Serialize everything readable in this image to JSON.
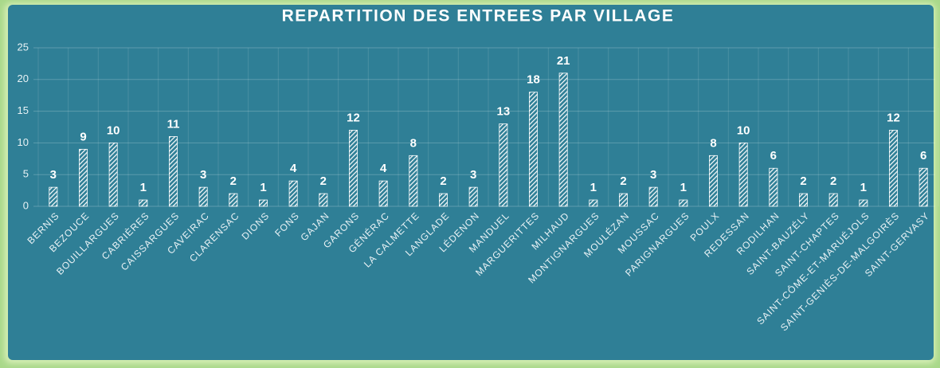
{
  "chart_data": {
    "type": "bar",
    "title": "REPARTITION  DES ENTREES PAR VILLAGE",
    "categories": [
      "BERNIS",
      "BEZOUCE",
      "BOUILLARGUES",
      "CABRIÈRES",
      "CAISSARGUES",
      "CAVEIRAC",
      "CLARENSAC",
      "DIONS",
      "FONS",
      "GAJAN",
      "GARONS",
      "GÉNÉRAC",
      "LA CALMETTE",
      "LANGLADE",
      "LÉDENON",
      "MANDUEL",
      "MARGUERITTES",
      "MILHAUD",
      "MONTIGNARGUES",
      "MOULÉZAN",
      "MOUSSAC",
      "PARIGNARGUES",
      "POULX",
      "REDESSAN",
      "RODILHAN",
      "SAINT-BAUZÉLY",
      "SAINT-CHAPTES",
      "SAINT-CÔME-ET-MARUÉJOLS",
      "SAINT-GENIÈS-DE-MALGOIRÈS",
      "SAINT-GERVASY"
    ],
    "values": [
      3,
      9,
      10,
      1,
      11,
      3,
      2,
      1,
      4,
      2,
      12,
      4,
      8,
      2,
      3,
      13,
      18,
      21,
      1,
      2,
      3,
      1,
      8,
      10,
      6,
      2,
      2,
      1,
      12,
      6
    ],
    "color": "#ffffff",
    "ylim": [
      0,
      25
    ],
    "yticks": [
      0,
      5,
      10,
      15,
      20,
      25
    ],
    "grid": true
  }
}
